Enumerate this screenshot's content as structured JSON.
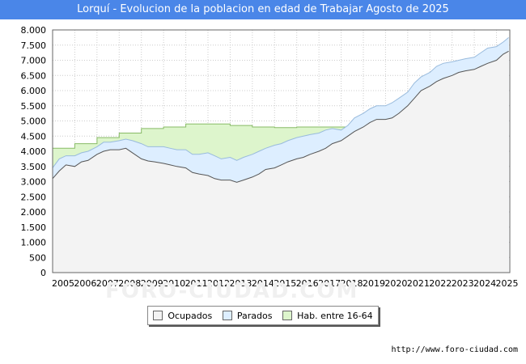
{
  "header": {
    "title": "Lorquí - Evolucion de la poblacion en edad de Trabajar Agosto de 2025"
  },
  "footer": {
    "source": "http://www.foro-ciudad.com",
    "watermark": "FORO-CIUDAD.COM"
  },
  "colors": {
    "title_bg": "#4a86e8",
    "ocupados_fill": "#f3f3f3",
    "ocupados_line": "#555555",
    "parados_fill": "#ddeeff",
    "parados_line": "#99bbdd",
    "hab_fill": "#ddf5cc",
    "hab_line": "#88bb66"
  },
  "chart_data": {
    "type": "area",
    "title": "Lorquí - Evolucion de la poblacion en edad de Trabajar Agosto de 2025",
    "ylim": [
      0,
      8000
    ],
    "yticks": [
      0,
      500,
      1000,
      1500,
      2000,
      2500,
      3000,
      3500,
      4000,
      4500,
      5000,
      5500,
      6000,
      6500,
      7000,
      7500,
      8000
    ],
    "ytick_labels": [
      "0",
      "500",
      "1.000",
      "1.500",
      "2.000",
      "2.500",
      "3.000",
      "3.500",
      "4.000",
      "4.500",
      "5.000",
      "5.500",
      "6.000",
      "6.500",
      "7.000",
      "7.500",
      "8.000"
    ],
    "xlim": [
      2005,
      2025.6
    ],
    "xticks": [
      "2005",
      "2006",
      "2007",
      "2008",
      "2009",
      "2010",
      "2011",
      "2012",
      "2013",
      "2014",
      "2015",
      "2016",
      "2017",
      "2018",
      "2019",
      "2020",
      "2021",
      "2022",
      "2023",
      "2024",
      "2025"
    ],
    "grid": true,
    "legend_position": "bottom-center",
    "series": [
      {
        "name": "Ocupados",
        "kind": "line-area",
        "x": [
          2005.0,
          2005.3,
          2005.6,
          2006.0,
          2006.3,
          2006.6,
          2007.0,
          2007.3,
          2007.6,
          2008.0,
          2008.3,
          2008.6,
          2009.0,
          2009.3,
          2009.6,
          2010.0,
          2010.3,
          2010.6,
          2011.0,
          2011.3,
          2011.6,
          2012.0,
          2012.3,
          2012.6,
          2013.0,
          2013.3,
          2013.6,
          2014.0,
          2014.3,
          2014.6,
          2015.0,
          2015.3,
          2015.6,
          2016.0,
          2016.3,
          2016.6,
          2017.0,
          2017.3,
          2017.6,
          2018.0,
          2018.3,
          2018.6,
          2019.0,
          2019.3,
          2019.6,
          2020.0,
          2020.3,
          2020.6,
          2021.0,
          2021.3,
          2021.6,
          2022.0,
          2022.3,
          2022.6,
          2023.0,
          2023.3,
          2023.6,
          2024.0,
          2024.3,
          2024.6,
          2025.0,
          2025.3,
          2025.55
        ],
        "values": [
          3100,
          3350,
          3550,
          3500,
          3650,
          3700,
          3900,
          4000,
          4050,
          4050,
          4100,
          3950,
          3750,
          3680,
          3650,
          3600,
          3550,
          3500,
          3450,
          3300,
          3250,
          3200,
          3100,
          3050,
          3050,
          2980,
          3050,
          3150,
          3250,
          3400,
          3450,
          3550,
          3650,
          3750,
          3800,
          3900,
          4000,
          4100,
          4250,
          4350,
          4500,
          4650,
          4800,
          4950,
          5050,
          5050,
          5100,
          5250,
          5500,
          5750,
          6000,
          6150,
          6300,
          6400,
          6500,
          6600,
          6650,
          6700,
          6800,
          6900,
          7000,
          7200,
          7300
        ]
      },
      {
        "name": "Parados",
        "kind": "line-area",
        "x": [
          2005.0,
          2005.3,
          2005.6,
          2006.0,
          2006.3,
          2006.6,
          2007.0,
          2007.3,
          2007.6,
          2008.0,
          2008.3,
          2008.6,
          2009.0,
          2009.3,
          2009.6,
          2010.0,
          2010.3,
          2010.6,
          2011.0,
          2011.3,
          2011.6,
          2012.0,
          2012.3,
          2012.6,
          2013.0,
          2013.3,
          2013.6,
          2014.0,
          2014.3,
          2014.6,
          2015.0,
          2015.3,
          2015.6,
          2016.0,
          2016.3,
          2016.6,
          2017.0,
          2017.3,
          2017.6,
          2018.0,
          2018.3,
          2018.6,
          2019.0,
          2019.3,
          2019.6,
          2020.0,
          2020.3,
          2020.6,
          2021.0,
          2021.3,
          2021.6,
          2022.0,
          2022.3,
          2022.6,
          2023.0,
          2023.3,
          2023.6,
          2024.0,
          2024.3,
          2024.6,
          2025.0,
          2025.3,
          2025.55
        ],
        "values": [
          3450,
          3750,
          3850,
          3850,
          3950,
          4000,
          4150,
          4300,
          4300,
          4350,
          4400,
          4350,
          4250,
          4150,
          4150,
          4150,
          4100,
          4050,
          4050,
          3900,
          3900,
          3950,
          3850,
          3750,
          3800,
          3700,
          3800,
          3900,
          4000,
          4100,
          4200,
          4250,
          4350,
          4450,
          4500,
          4550,
          4600,
          4700,
          4750,
          4700,
          4850,
          5100,
          5250,
          5400,
          5500,
          5500,
          5600,
          5750,
          5950,
          6250,
          6450,
          6600,
          6800,
          6900,
          6950,
          7000,
          7050,
          7100,
          7250,
          7400,
          7450,
          7600,
          7750
        ]
      },
      {
        "name": "Hab. entre 16-64",
        "kind": "step-area",
        "x": [
          2005,
          2006,
          2007,
          2008,
          2009,
          2010,
          2011,
          2012,
          2013,
          2014,
          2015,
          2016,
          2017,
          2018
        ],
        "values": [
          4100,
          4250,
          4450,
          4600,
          4750,
          4800,
          4900,
          4900,
          4850,
          4800,
          4780,
          4800,
          4800,
          4800
        ]
      }
    ]
  }
}
